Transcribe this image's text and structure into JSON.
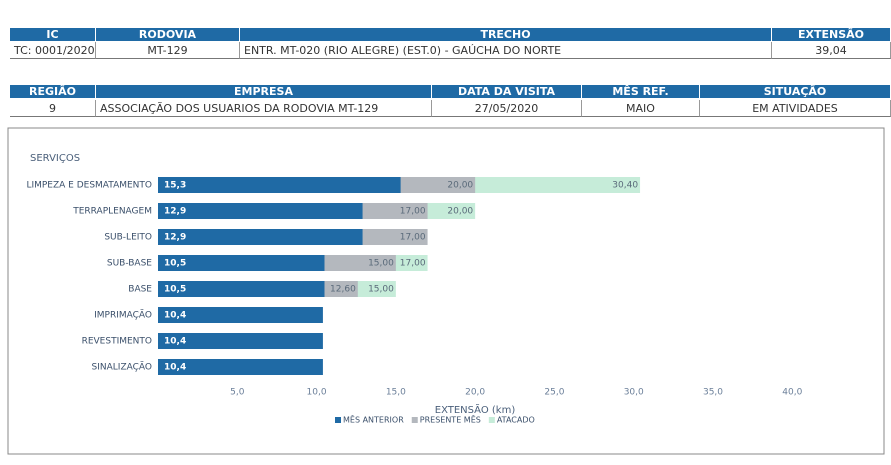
{
  "header": {
    "row1": {
      "labels": [
        "IC",
        "RODOVIA",
        "TRECHO",
        "EXTENSÃO"
      ],
      "values": [
        "TC: 0001/2020",
        "MT-129",
        "ENTR. MT-020 (RIO ALEGRE) (EST.0) - GAÚCHA DO NORTE",
        "39,04"
      ]
    },
    "row2": {
      "labels": [
        "REGIÃO",
        "EMPRESA",
        "DATA DA VISITA",
        "MÊS REF.",
        "SITUAÇÃO"
      ],
      "values": [
        "9",
        "ASSOCIAÇÃO DOS USUARIOS DA RODOVIA MT-129",
        "27/05/2020",
        "MAIO",
        "EM ATIVIDADES"
      ]
    }
  },
  "chart_data": {
    "type": "overlapped-hbar",
    "title": "SERVIÇOS",
    "x_label": "EXTENSÃO (km)",
    "categories": [
      "LIMPEZA E DESMATAMENTO",
      "TERRAPLENAGEM",
      "SUB-LEITO",
      "SUB-BASE",
      "BASE",
      "IMPRIMAÇÃO",
      "REVESTIMENTO",
      "SINALIZAÇÃO"
    ],
    "series": [
      {
        "name": "MÊS ANTERIOR",
        "color": "#1f6aa5",
        "values": [
          15.3,
          12.9,
          12.9,
          10.5,
          10.5,
          10.4,
          10.4,
          10.4
        ],
        "value_labels": [
          "15,3",
          "12,9",
          "12,9",
          "10,5",
          "10,5",
          "10,4",
          "10,4",
          "10,4"
        ]
      },
      {
        "name": "PRESENTE MÊS",
        "color": "#b4b8be",
        "values": [
          20.0,
          17.0,
          17.0,
          15.0,
          12.6,
          null,
          null,
          null
        ],
        "value_labels": [
          "20,00",
          "17,00",
          "17,00",
          "15,00",
          "12,60",
          null,
          null,
          null
        ]
      },
      {
        "name": "ATACADO",
        "color": "#c6ecd9",
        "values": [
          30.4,
          20.0,
          null,
          17.0,
          15.0,
          null,
          null,
          null
        ],
        "value_labels": [
          "30,40",
          "20,00",
          null,
          "17,00",
          "15,00",
          null,
          null,
          null
        ]
      }
    ],
    "xlim": [
      0,
      42
    ],
    "xticks": [
      {
        "value": 5,
        "label": "5,0"
      },
      {
        "value": 10,
        "label": "10,0"
      },
      {
        "value": 15,
        "label": "15,0"
      },
      {
        "value": 20,
        "label": "20,0"
      },
      {
        "value": 25,
        "label": "25,0"
      },
      {
        "value": 30,
        "label": "30,0"
      },
      {
        "value": 35,
        "label": "35,0"
      },
      {
        "value": 40,
        "label": "40,0"
      }
    ],
    "legend": "bottom"
  }
}
